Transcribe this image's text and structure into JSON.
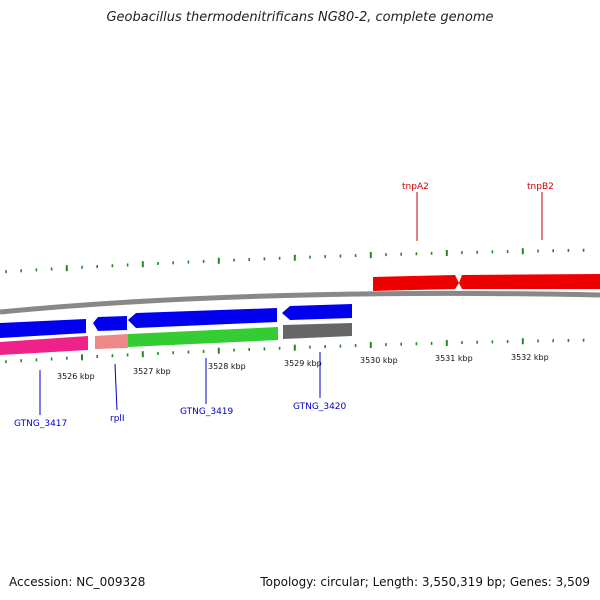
{
  "title": "Geobacillus thermodenitrificans NG80-2, complete genome",
  "accession": "Accession: NC_009328",
  "summary": "Topology: circular; Length: 3,550,319 bp; Genes: 3,509",
  "colors": {
    "backbone": "#888888",
    "blue_gene": "#0000ee",
    "magenta_gene": "#ee2288",
    "salmon_gene": "#ee8888",
    "green_gene": "#33cc33",
    "gray_gene": "#666666",
    "red_gene": "#ee0000",
    "tick": "#228822",
    "top_label": "#cc0000",
    "bottom_label": "#0000cc"
  },
  "kbp_labels": [
    "3526 kbp",
    "3527 kbp",
    "3528 kbp",
    "3529 kbp",
    "3530 kbp",
    "3531 kbp",
    "3532 kbp"
  ],
  "top_genes": [
    "tnpA2",
    "tnpB2"
  ],
  "bottom_genes": [
    "GTNG_3417",
    "rplI",
    "GTNG_3419",
    "GTNG_3420"
  ]
}
